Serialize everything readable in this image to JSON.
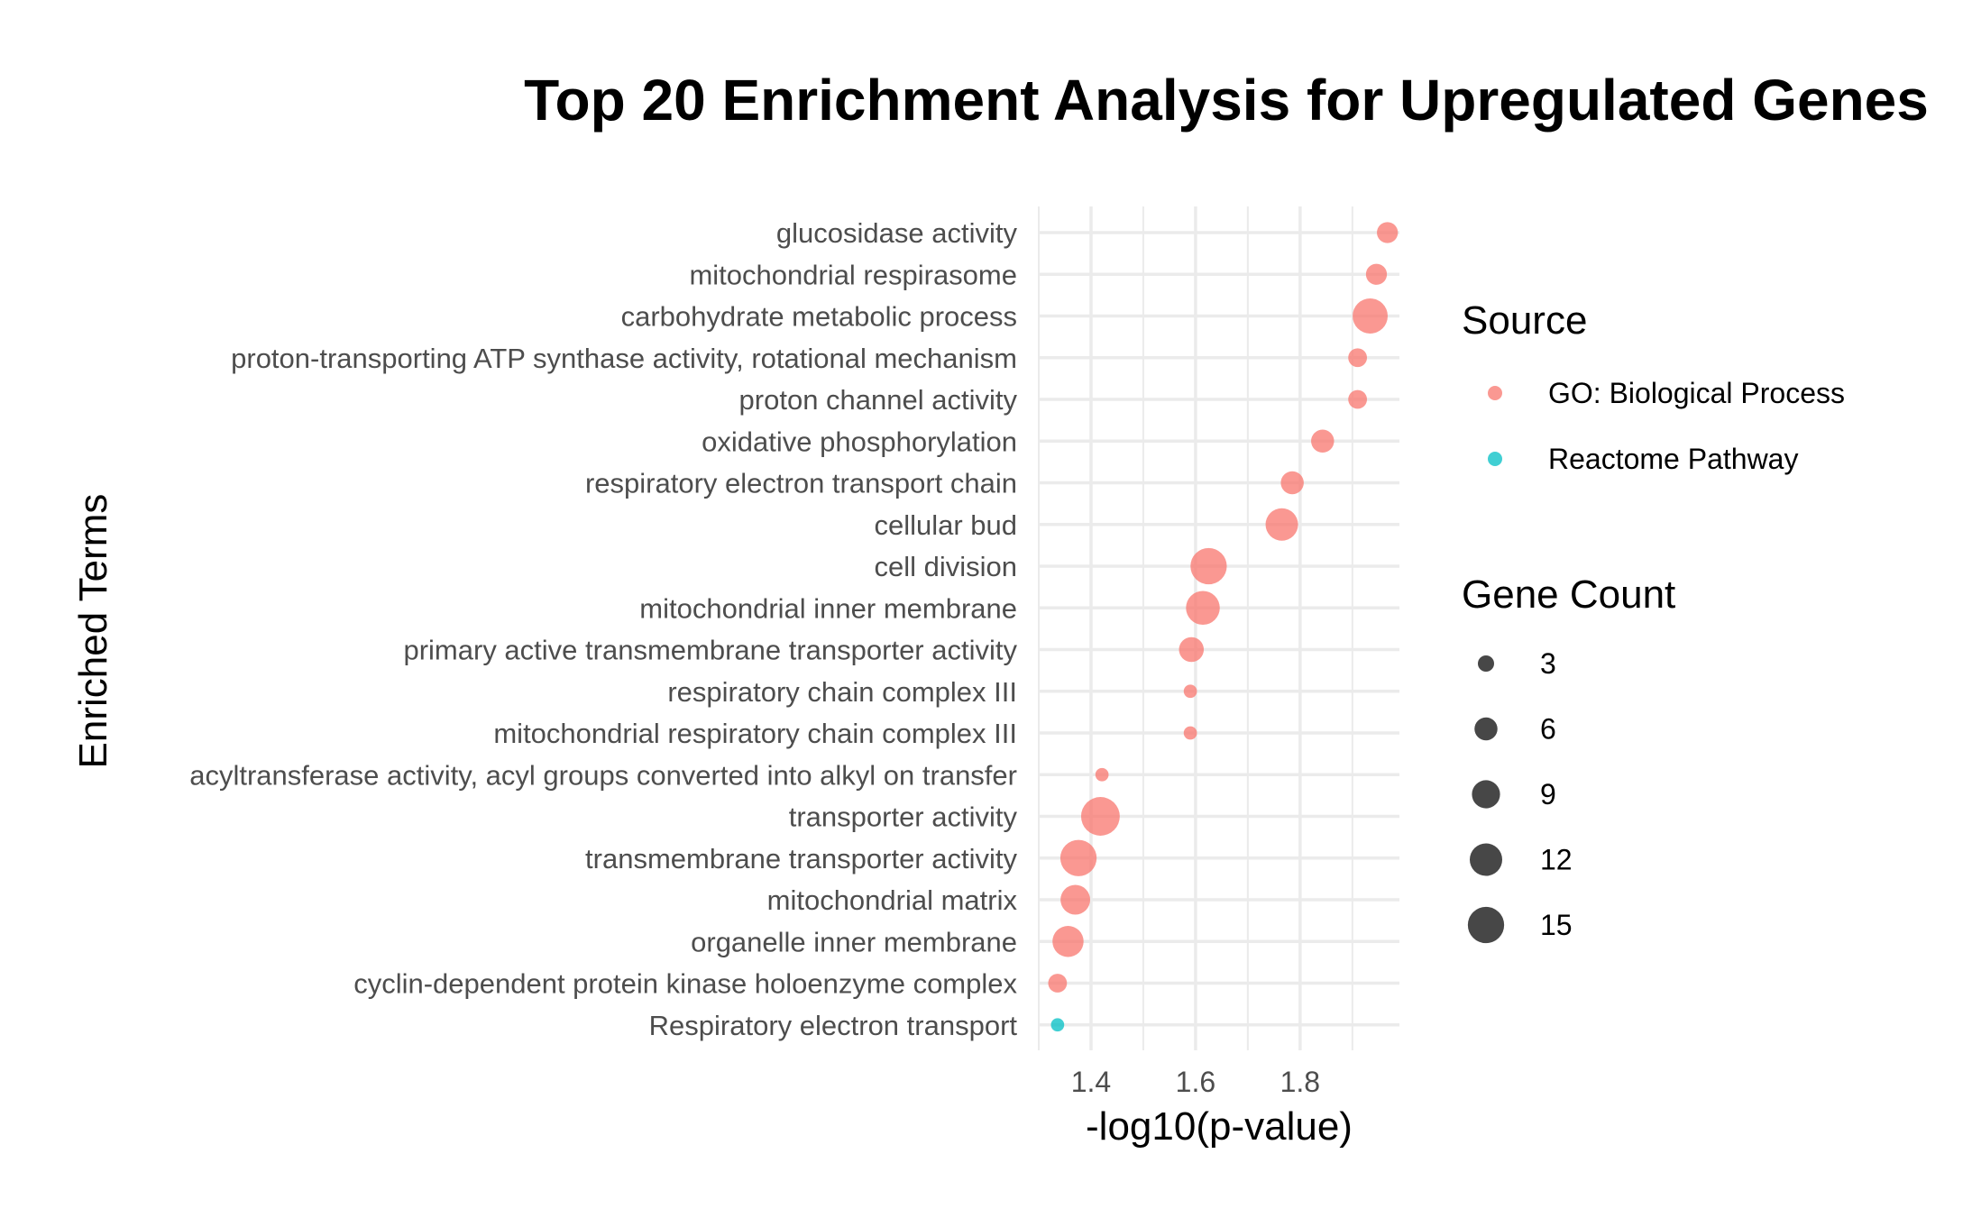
{
  "chart_data": {
    "type": "scatter",
    "title": "Top 20 Enrichment Analysis for Upregulated Genes",
    "xlabel": "-log10(p-value)",
    "ylabel": "Enriched Terms",
    "xlim": [
      1.3,
      1.99
    ],
    "xticks": [
      1.4,
      1.6,
      1.8
    ],
    "grid": true,
    "categories": [
      "glucosidase activity",
      "mitochondrial respirasome",
      "carbohydrate metabolic process",
      "proton-transporting ATP synthase activity, rotational mechanism",
      "proton channel activity",
      "oxidative phosphorylation",
      "respiratory electron transport chain",
      "cellular bud",
      "cell division",
      "mitochondrial inner membrane",
      "primary active transmembrane transporter activity",
      "respiratory chain complex III",
      "mitochondrial respiratory chain complex III",
      "acyltransferase activity, acyl groups converted into alkyl on transfer",
      "transporter activity",
      "transmembrane transporter activity",
      "mitochondrial matrix",
      "organelle inner membrane",
      "cyclin-dependent protein kinase holoenzyme complex",
      "Respiratory electron transport"
    ],
    "points": [
      {
        "term": "glucosidase activity",
        "x": 1.967,
        "count": 5,
        "source": "GO: Biological Process"
      },
      {
        "term": "mitochondrial respirasome",
        "x": 1.946,
        "count": 5,
        "source": "GO: Biological Process"
      },
      {
        "term": "carbohydrate metabolic process",
        "x": 1.934,
        "count": 14,
        "source": "GO: Biological Process"
      },
      {
        "term": "proton-transporting ATP synthase activity, rotational mechanism",
        "x": 1.91,
        "count": 4,
        "source": "GO: Biological Process"
      },
      {
        "term": "proton channel activity",
        "x": 1.91,
        "count": 4,
        "source": "GO: Biological Process"
      },
      {
        "term": "oxidative phosphorylation",
        "x": 1.843,
        "count": 6,
        "source": "GO: Biological Process"
      },
      {
        "term": "respiratory electron transport chain",
        "x": 1.785,
        "count": 6,
        "source": "GO: Biological Process"
      },
      {
        "term": "cellular bud",
        "x": 1.765,
        "count": 12,
        "source": "GO: Biological Process"
      },
      {
        "term": "cell division",
        "x": 1.625,
        "count": 15,
        "source": "GO: Biological Process"
      },
      {
        "term": "mitochondrial inner membrane",
        "x": 1.614,
        "count": 13,
        "source": "GO: Biological Process"
      },
      {
        "term": "primary active transmembrane transporter activity",
        "x": 1.592,
        "count": 7,
        "source": "GO: Biological Process"
      },
      {
        "term": "respiratory chain complex III",
        "x": 1.59,
        "count": 2,
        "source": "GO: Biological Process"
      },
      {
        "term": "mitochondrial respiratory chain complex III",
        "x": 1.59,
        "count": 2,
        "source": "GO: Biological Process"
      },
      {
        "term": "acyltransferase activity, acyl groups converted into alkyl on transfer",
        "x": 1.421,
        "count": 2,
        "source": "GO: Biological Process"
      },
      {
        "term": "transporter activity",
        "x": 1.418,
        "count": 17,
        "source": "GO: Biological Process"
      },
      {
        "term": "transmembrane transporter activity",
        "x": 1.376,
        "count": 15,
        "source": "GO: Biological Process"
      },
      {
        "term": "mitochondrial matrix",
        "x": 1.37,
        "count": 10,
        "source": "GO: Biological Process"
      },
      {
        "term": "organelle inner membrane",
        "x": 1.356,
        "count": 11,
        "source": "GO: Biological Process"
      },
      {
        "term": "cyclin-dependent protein kinase holoenzyme complex",
        "x": 1.336,
        "count": 4,
        "source": "GO: Biological Process"
      },
      {
        "term": "Respiratory electron transport",
        "x": 1.336,
        "count": 2,
        "source": "Reactome Pathway"
      }
    ],
    "legend": {
      "color_title": "Source",
      "color_entries": [
        {
          "label": "GO: Biological Process",
          "color": "#f8766d"
        },
        {
          "label": "Reactome Pathway",
          "color": "#00bfc4"
        }
      ],
      "size_title": "Gene Count",
      "size_entries": [
        3,
        6,
        9,
        12,
        15
      ],
      "placement": "right"
    }
  }
}
